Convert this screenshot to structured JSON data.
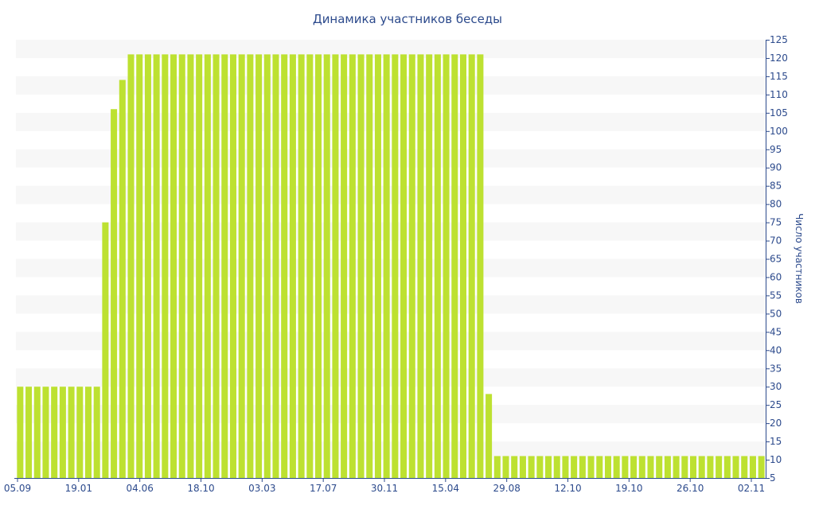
{
  "chart_data": {
    "type": "bar",
    "title": "Динамика участников беседы",
    "xlabel": "",
    "ylabel": "Число участников",
    "ylim": [
      5,
      125
    ],
    "y_ticks": [
      5,
      10,
      15,
      20,
      25,
      30,
      35,
      40,
      45,
      50,
      55,
      60,
      65,
      70,
      75,
      80,
      85,
      90,
      95,
      100,
      105,
      110,
      115,
      120,
      125
    ],
    "x_tick_labels": [
      "05.09",
      "19.01",
      "04.06",
      "18.10",
      "03.03",
      "17.07",
      "30.11",
      "15.04",
      "29.08",
      "12.10",
      "19.10",
      "26.10",
      "02.11"
    ],
    "y_axis_position": "right",
    "grid": "horizontal bands",
    "legend": "none",
    "bar_color": "#bde131",
    "values": [
      30,
      30,
      30,
      30,
      30,
      30,
      30,
      30,
      30,
      30,
      75,
      106,
      114,
      121,
      121,
      121,
      121,
      121,
      121,
      121,
      121,
      121,
      121,
      121,
      121,
      121,
      121,
      121,
      121,
      121,
      121,
      121,
      121,
      121,
      121,
      121,
      121,
      121,
      121,
      121,
      121,
      121,
      121,
      121,
      121,
      121,
      121,
      121,
      121,
      121,
      121,
      121,
      121,
      121,
      121,
      28,
      11,
      11,
      11,
      11,
      11,
      11,
      11,
      11,
      11,
      11,
      11,
      11,
      11,
      11,
      11,
      11,
      11,
      11,
      11,
      11,
      11,
      11,
      11,
      11,
      11,
      11,
      11,
      11,
      11,
      11,
      11,
      11
    ]
  }
}
